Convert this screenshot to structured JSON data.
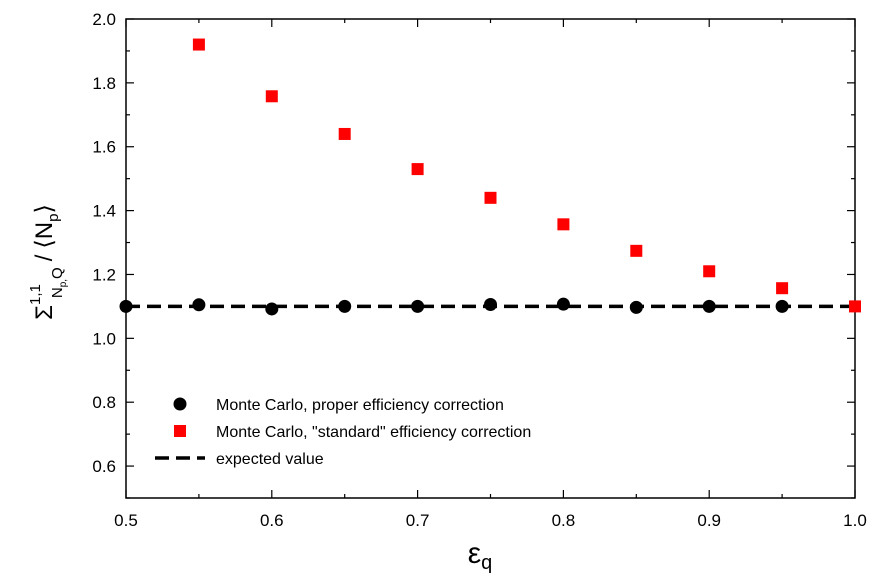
{
  "chart_data": {
    "type": "scatter",
    "title": "",
    "xlabel": {
      "main": "ε",
      "sub": "q"
    },
    "ylabel": {
      "sigma": "Σ",
      "sup": "1,1",
      "sub": "N",
      "subsub": "p,",
      "sub2": "Q",
      "divider": "/",
      "mean": "⟨N",
      "mean_sub": "p",
      "mean_close": "⟩"
    },
    "xlim": [
      0.5,
      1.0
    ],
    "ylim": [
      0.5,
      2.0
    ],
    "xticks": [
      0.5,
      0.6,
      0.7,
      0.8,
      0.9,
      1.0
    ],
    "xtick_labels": [
      "0.5",
      "0.6",
      "0.7",
      "0.8",
      "0.9",
      "1.0"
    ],
    "yticks": [
      0.6,
      0.8,
      1.0,
      1.2,
      1.4,
      1.6,
      1.8,
      2.0
    ],
    "ytick_labels": [
      "0.6",
      "0.8",
      "1.0",
      "1.2",
      "1.4",
      "1.6",
      "1.8",
      "2.0"
    ],
    "grid": false,
    "legend_position": "bottom-left",
    "series": [
      {
        "name": "Monte Carlo, proper efficiency correction",
        "marker": "circle",
        "color": "#000000",
        "x": [
          0.5,
          0.55,
          0.6,
          0.65,
          0.7,
          0.75,
          0.8,
          0.85,
          0.9,
          0.95
        ],
        "y": [
          1.1,
          1.105,
          1.092,
          1.1,
          1.1,
          1.106,
          1.107,
          1.097,
          1.1,
          1.1
        ]
      },
      {
        "name": "Monte Carlo, \"standard\" efficiency correction",
        "marker": "square",
        "color": "#ff0000",
        "x": [
          0.55,
          0.6,
          0.65,
          0.7,
          0.75,
          0.8,
          0.85,
          0.9,
          0.95,
          1.0
        ],
        "y": [
          1.92,
          1.758,
          1.64,
          1.53,
          1.44,
          1.357,
          1.274,
          1.21,
          1.157,
          1.1
        ]
      },
      {
        "name": "expected value",
        "marker": "dashed-line",
        "color": "#000000",
        "y": 1.1
      }
    ]
  }
}
